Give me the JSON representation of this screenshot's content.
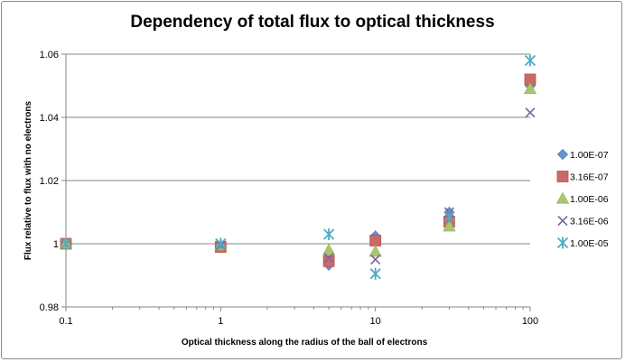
{
  "chart_data": {
    "type": "scatter",
    "title": "Dependency of total flux to optical thickness",
    "xlabel": "Optical thickness along the radius of the ball of electrons",
    "ylabel": "Flux relative to flux with no electrons",
    "xscale": "log",
    "xlim": [
      0.1,
      100
    ],
    "ylim": [
      0.98,
      1.06
    ],
    "xticks": [
      0.1,
      1,
      10,
      100
    ],
    "xtick_labels": [
      "0.1",
      "1",
      "10",
      "100"
    ],
    "yticks": [
      0.98,
      1,
      1.02,
      1.04,
      1.06
    ],
    "ytick_labels": [
      "0.98",
      "1",
      "1.02",
      "1.04",
      "1.06"
    ],
    "grid": "horizontal",
    "legend_position": "right",
    "series": [
      {
        "name": "1.00E-07",
        "marker": "diamond",
        "color": "#4F81BD",
        "x": [
          0.1,
          1,
          5,
          10,
          30,
          100
        ],
        "y": [
          1.0,
          0.9995,
          0.9932,
          1.0025,
          1.01,
          1.05
        ]
      },
      {
        "name": "3.16E-07",
        "marker": "square",
        "color": "#C0504D",
        "x": [
          0.1,
          1,
          5,
          10,
          30,
          100
        ],
        "y": [
          1.0,
          0.999,
          0.9945,
          1.001,
          1.007,
          1.052
        ]
      },
      {
        "name": "1.00E-06",
        "marker": "triangle",
        "color": "#9BBB59",
        "x": [
          0.1,
          1,
          5,
          10,
          30,
          100
        ],
        "y": [
          1.0,
          0.9995,
          0.998,
          0.9975,
          1.0055,
          1.049
        ]
      },
      {
        "name": "3.16E-06",
        "marker": "x",
        "color": "#8064A2",
        "x": [
          0.1,
          1,
          5,
          10,
          30,
          100
        ],
        "y": [
          1.0,
          0.9995,
          0.9955,
          0.995,
          1.01,
          1.0415
        ]
      },
      {
        "name": "1.00E-05",
        "marker": "star",
        "color": "#4BACC6",
        "x": [
          0.1,
          1,
          5,
          10,
          30,
          100
        ],
        "y": [
          1.0,
          1.0,
          1.003,
          0.9905,
          1.0085,
          1.058
        ]
      }
    ]
  }
}
